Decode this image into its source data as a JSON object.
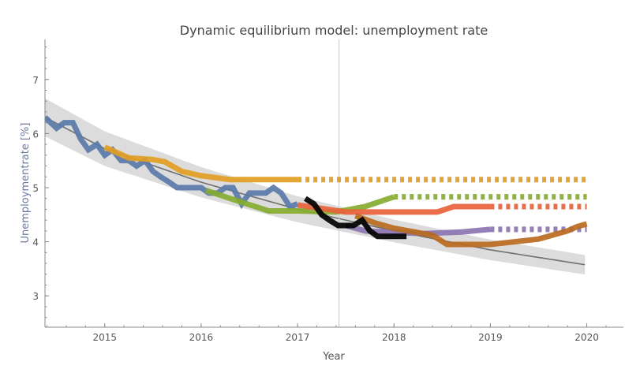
{
  "chart_data": {
    "type": "line",
    "title": "Dynamic equilibrium model: unemployment rate",
    "xlabel": "Year",
    "ylabel": "Unemploymentrate [%]",
    "xlim": [
      2014.38,
      2020.38
    ],
    "ylim": [
      2.42,
      7.74
    ],
    "xticks": [
      2015,
      2016,
      2017,
      2018,
      2019,
      2020
    ],
    "yticks": [
      3,
      4,
      5,
      6,
      7
    ],
    "grid": false,
    "vertical_marker": 2017.43,
    "trend": {
      "color": "#707070",
      "band_color": "#dcdcdc",
      "x": [
        2014.38,
        2015,
        2016,
        2017,
        2018,
        2019,
        2020
      ],
      "y": [
        6.3,
        5.72,
        5.1,
        4.6,
        4.2,
        3.85,
        3.57
      ],
      "band_halfwidth": [
        0.35,
        0.32,
        0.28,
        0.24,
        0.21,
        0.19,
        0.18
      ]
    },
    "series": [
      {
        "color": "#5a78a8",
        "style": "solid",
        "x": [
          2014.38,
          2014.5,
          2014.58,
          2014.67,
          2014.75,
          2014.83,
          2014.92,
          2015.0,
          2015.08,
          2015.17,
          2015.25,
          2015.33,
          2015.42,
          2015.5,
          2015.58,
          2015.67,
          2015.75,
          2015.83,
          2015.92,
          2016.0,
          2016.08,
          2016.17,
          2016.25,
          2016.33,
          2016.42,
          2016.5,
          2016.58,
          2016.67,
          2016.75,
          2016.83,
          2016.92,
          2017.0
        ],
        "y": [
          6.3,
          6.1,
          6.2,
          6.2,
          5.9,
          5.7,
          5.8,
          5.6,
          5.7,
          5.5,
          5.5,
          5.4,
          5.5,
          5.3,
          5.2,
          5.1,
          5.0,
          5.0,
          5.0,
          5.0,
          4.9,
          4.9,
          5.0,
          5.0,
          4.7,
          4.9,
          4.9,
          4.9,
          5.0,
          4.9,
          4.65,
          4.7
        ]
      },
      {
        "color": "#e29d24",
        "style": "solid",
        "x": [
          2015.0,
          2015.25,
          2015.5,
          2015.62,
          2015.8,
          2016.0,
          2016.3,
          2017.0
        ],
        "y": [
          5.75,
          5.55,
          5.52,
          5.48,
          5.3,
          5.22,
          5.15,
          5.15
        ]
      },
      {
        "color": "#e29d24",
        "style": "dotted",
        "x": [
          2017.0,
          2020.0
        ],
        "y": [
          5.15,
          5.15
        ]
      },
      {
        "color": "#86ab30",
        "style": "solid",
        "x": [
          2016.05,
          2016.3,
          2016.7,
          2017.0,
          2017.4,
          2017.7,
          2018.0
        ],
        "y": [
          4.95,
          4.8,
          4.57,
          4.57,
          4.55,
          4.65,
          4.83
        ]
      },
      {
        "color": "#86ab30",
        "style": "dotted",
        "x": [
          2018.0,
          2020.0
        ],
        "y": [
          4.83,
          4.83
        ]
      },
      {
        "color": "#e8623a",
        "style": "solid",
        "x": [
          2017.0,
          2017.5,
          2017.8,
          2018.45,
          2018.62,
          2019.0
        ],
        "y": [
          4.68,
          4.55,
          4.55,
          4.55,
          4.65,
          4.65
        ]
      },
      {
        "color": "#e8623a",
        "style": "dotted",
        "x": [
          2019.0,
          2020.0
        ],
        "y": [
          4.65,
          4.65
        ]
      },
      {
        "color": "#8b74b0",
        "style": "solid",
        "x": [
          2017.5,
          2017.7,
          2018.3,
          2018.7,
          2019.0
        ],
        "y": [
          4.3,
          4.2,
          4.15,
          4.18,
          4.23
        ]
      },
      {
        "color": "#8b74b0",
        "style": "dotted",
        "x": [
          2019.0,
          2020.0
        ],
        "y": [
          4.23,
          4.23
        ]
      },
      {
        "color": "#b86a1e",
        "style": "solid",
        "x": [
          2017.6,
          2017.8,
          2018.0,
          2018.4,
          2018.55,
          2019.0,
          2019.5,
          2019.8,
          2019.9,
          2020.0
        ],
        "y": [
          4.48,
          4.35,
          4.25,
          4.12,
          3.95,
          3.95,
          4.05,
          4.2,
          4.28,
          4.33
        ]
      },
      {
        "color": "#000000",
        "style": "solid",
        "x": [
          2017.08,
          2017.17,
          2017.25,
          2017.33,
          2017.42,
          2017.5,
          2017.58,
          2017.67,
          2017.75,
          2017.83,
          2018.0,
          2018.13
        ],
        "y": [
          4.8,
          4.7,
          4.5,
          4.4,
          4.3,
          4.3,
          4.3,
          4.4,
          4.2,
          4.1,
          4.1,
          4.1
        ]
      }
    ]
  }
}
